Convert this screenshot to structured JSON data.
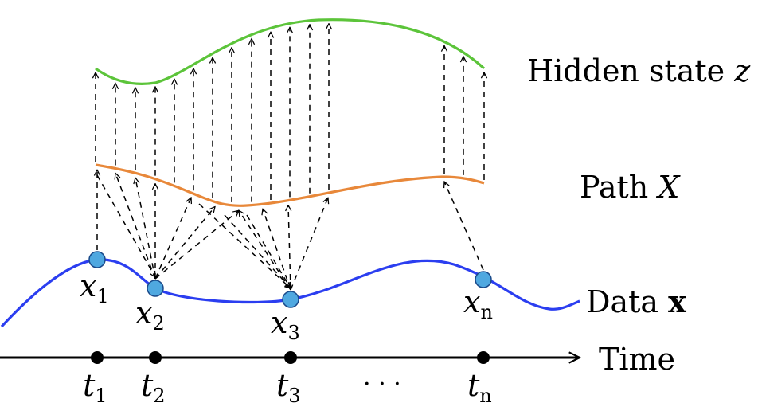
{
  "labels": {
    "hidden_state": "Hidden state",
    "hidden_state_var": "z",
    "path": "Path",
    "path_var": "X",
    "data": "Data",
    "data_var": "x",
    "time": "Time"
  },
  "data_points": [
    {
      "name": "x",
      "sub": "1"
    },
    {
      "name": "x",
      "sub": "2"
    },
    {
      "name": "x",
      "sub": "3"
    },
    {
      "name": "x",
      "sub": "n"
    }
  ],
  "time_points": [
    {
      "name": "t",
      "sub": "1"
    },
    {
      "name": "t",
      "sub": "2"
    },
    {
      "name": "t",
      "sub": "3"
    },
    {
      "name": "t",
      "sub": "n"
    }
  ],
  "ellipsis": "· · ·",
  "colors": {
    "hidden_curve": "#5cc43a",
    "path_curve": "#e8883a",
    "data_curve": "#2b3ef0",
    "data_point_fill": "#4fa8e0",
    "data_point_stroke": "#1a4a8a",
    "arrows": "#000000"
  }
}
